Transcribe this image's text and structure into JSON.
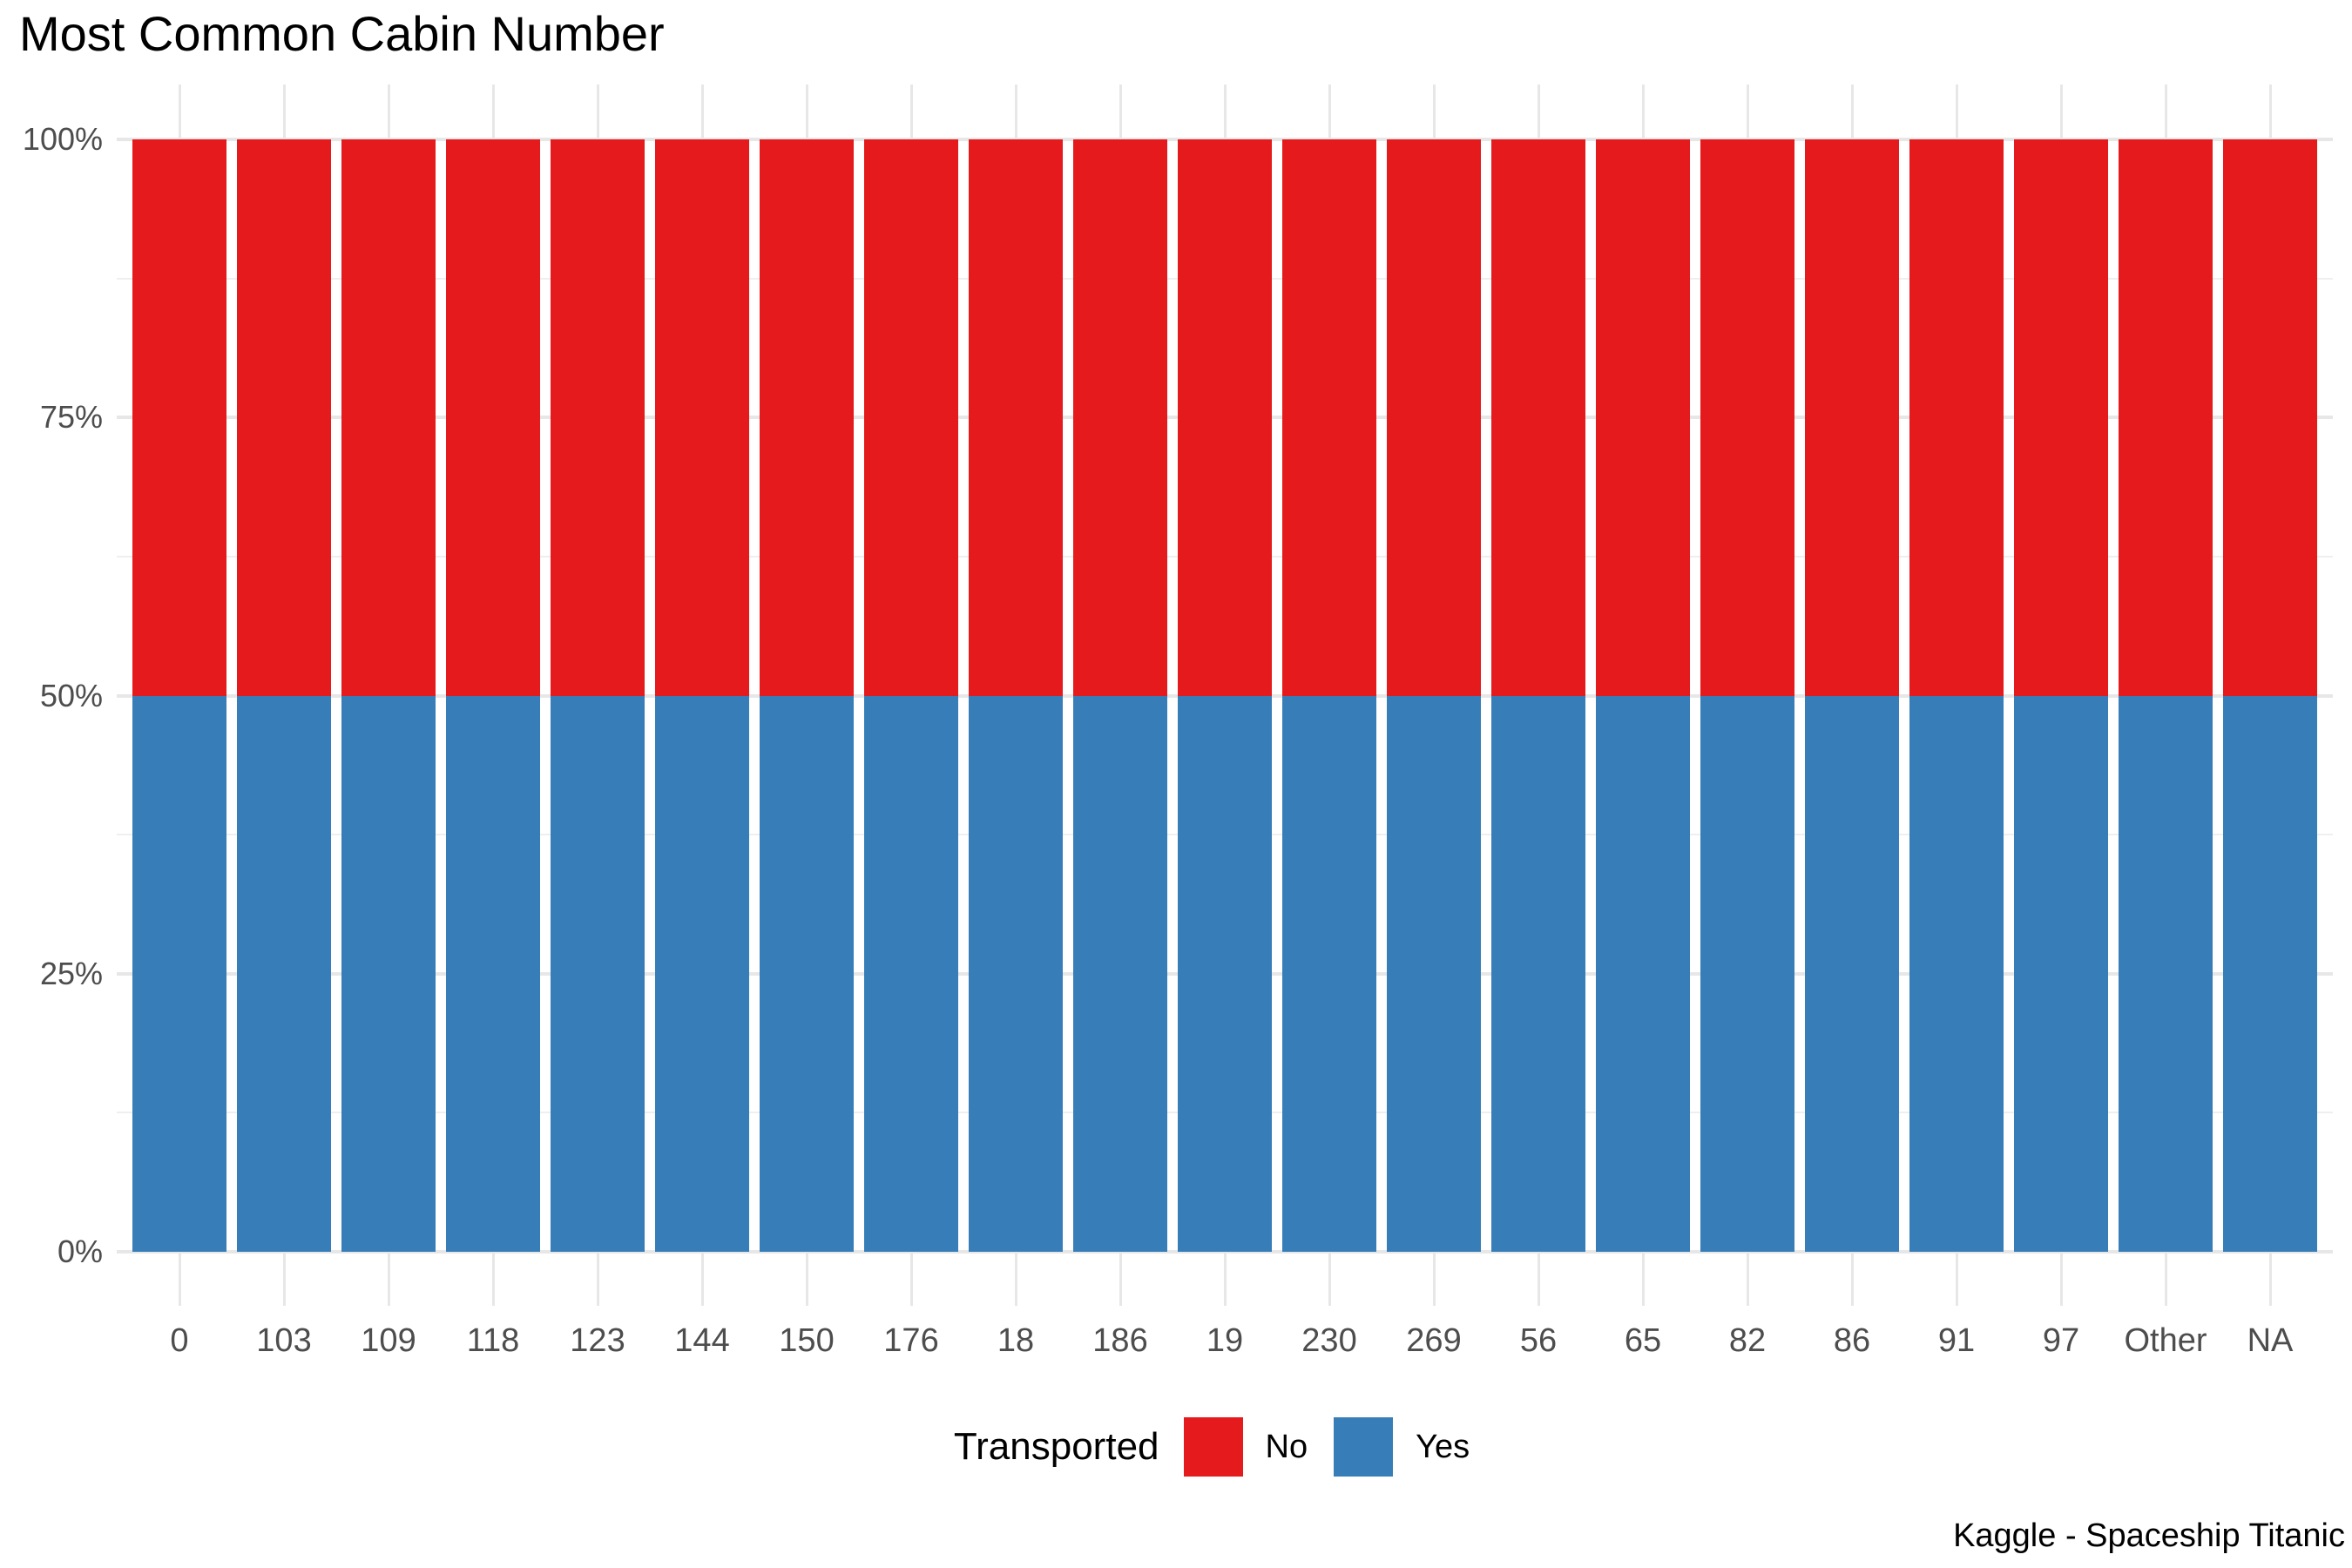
{
  "title": "Most Common Cabin Number",
  "caption": "Kaggle - Spaceship Titanic",
  "legend": {
    "title": "Transported",
    "items": [
      {
        "label": "No",
        "color": "#e41a1c"
      },
      {
        "label": "Yes",
        "color": "#377eb8"
      }
    ]
  },
  "colors": {
    "background": "#ffffff",
    "grid_major": "#e7e7e7",
    "grid_minor": "#efefef",
    "axis_text": "#4d4d4d",
    "title_text": "#000000"
  },
  "chart_data": {
    "type": "bar",
    "stacking": "percent",
    "orientation": "vertical",
    "title": "Most Common Cabin Number",
    "xlabel": "",
    "ylabel": "",
    "ylim": [
      0,
      100
    ],
    "grid": true,
    "legend_title": "Transported",
    "legend_position": "bottom",
    "categories": [
      "0",
      "103",
      "109",
      "118",
      "123",
      "144",
      "150",
      "176",
      "18",
      "186",
      "19",
      "230",
      "269",
      "56",
      "65",
      "82",
      "86",
      "91",
      "97",
      "Other",
      "NA"
    ],
    "series": [
      {
        "name": "No",
        "color": "#e41a1c",
        "values": [
          50,
          50,
          50,
          50,
          50,
          50,
          50,
          50,
          50,
          50,
          50,
          50,
          50,
          50,
          50,
          50,
          50,
          50,
          50,
          50,
          50
        ]
      },
      {
        "name": "Yes",
        "color": "#377eb8",
        "values": [
          50,
          50,
          50,
          50,
          50,
          50,
          50,
          50,
          50,
          50,
          50,
          50,
          50,
          50,
          50,
          50,
          50,
          50,
          50,
          50,
          50
        ]
      }
    ],
    "y_ticks": [
      {
        "value": 0,
        "label": "0%"
      },
      {
        "value": 25,
        "label": "25%"
      },
      {
        "value": 50,
        "label": "50%"
      },
      {
        "value": 75,
        "label": "75%"
      },
      {
        "value": 100,
        "label": "100%"
      }
    ]
  }
}
